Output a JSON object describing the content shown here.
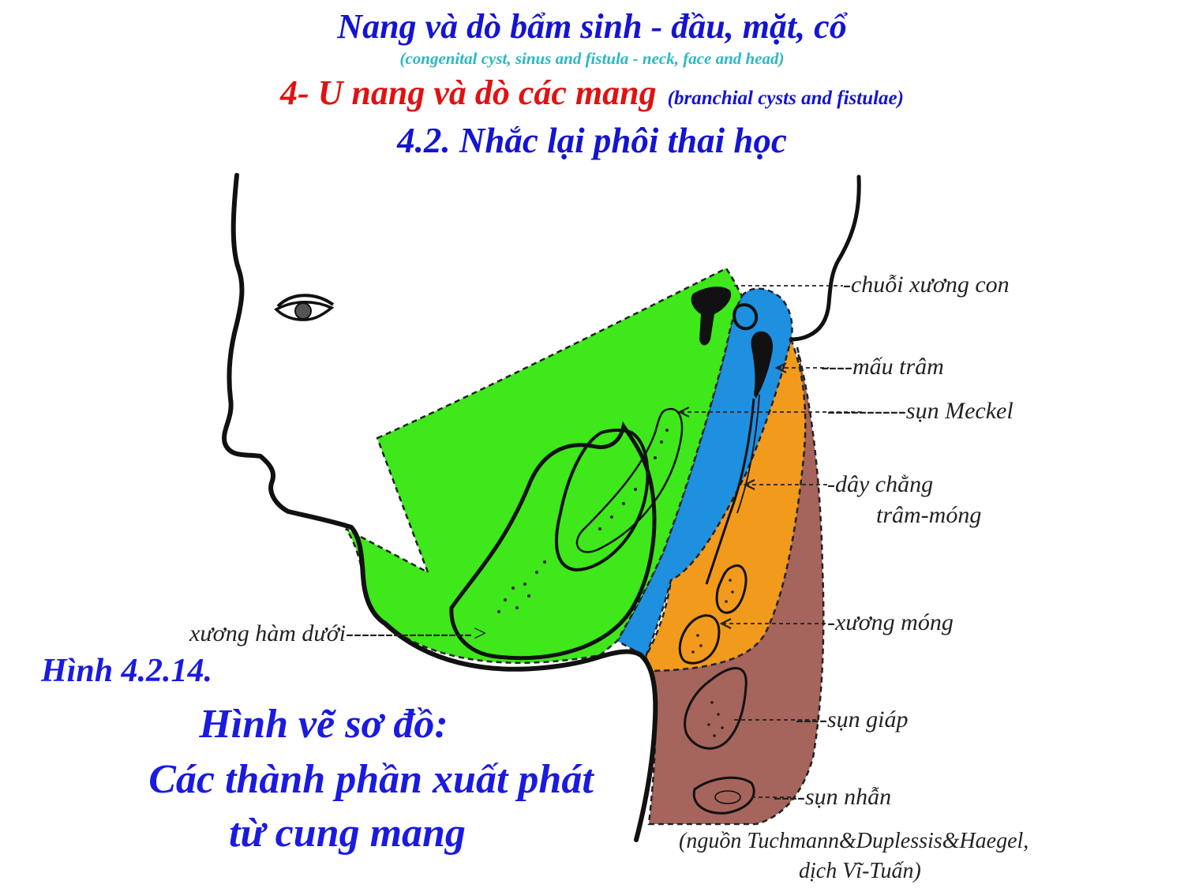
{
  "header": {
    "title": "Nang và dò bẩm sinh - đầu, mặt, cổ",
    "title_en": "(congenital cyst, sinus and fistula - neck, face and head)",
    "section": "4- U nang và dò các mang",
    "section_en": "(branchial cysts and fistulae)",
    "subsection": "4.2. Nhắc lại phôi thai học"
  },
  "labels": {
    "ossicles": "-chuỗi xương con",
    "styloid": "----mấu trâm",
    "meckel": "----------sụn Meckel",
    "stylohyoid_1": "-dây chằng",
    "stylohyoid_2": "trâm-móng",
    "hyoid": "-xương móng",
    "thyroid": "----sụn giáp",
    "cricoid": "----sụn nhẫn",
    "mandible": "xương hàm dưới---------------->"
  },
  "caption": {
    "number": "Hình 4.2.14.",
    "line1": "Hình vẽ sơ đồ:",
    "line2": "Các thành phần xuất phát",
    "line3": "từ cung mang"
  },
  "source": {
    "line1": "(nguồn  Tuchmann&Duplessis&Haegel,",
    "line2": "dịch Vĩ-Tuấn)"
  },
  "colors": {
    "arch1_green": "#3ee81a",
    "arch2_blue": "#1f8fe0",
    "arch3_orange": "#f29a1c",
    "arch4_6_brown": "#a5645c",
    "title_blue": "#1414d2",
    "section_red": "#e01212",
    "subtitle_cyan": "#2bb8c4"
  }
}
